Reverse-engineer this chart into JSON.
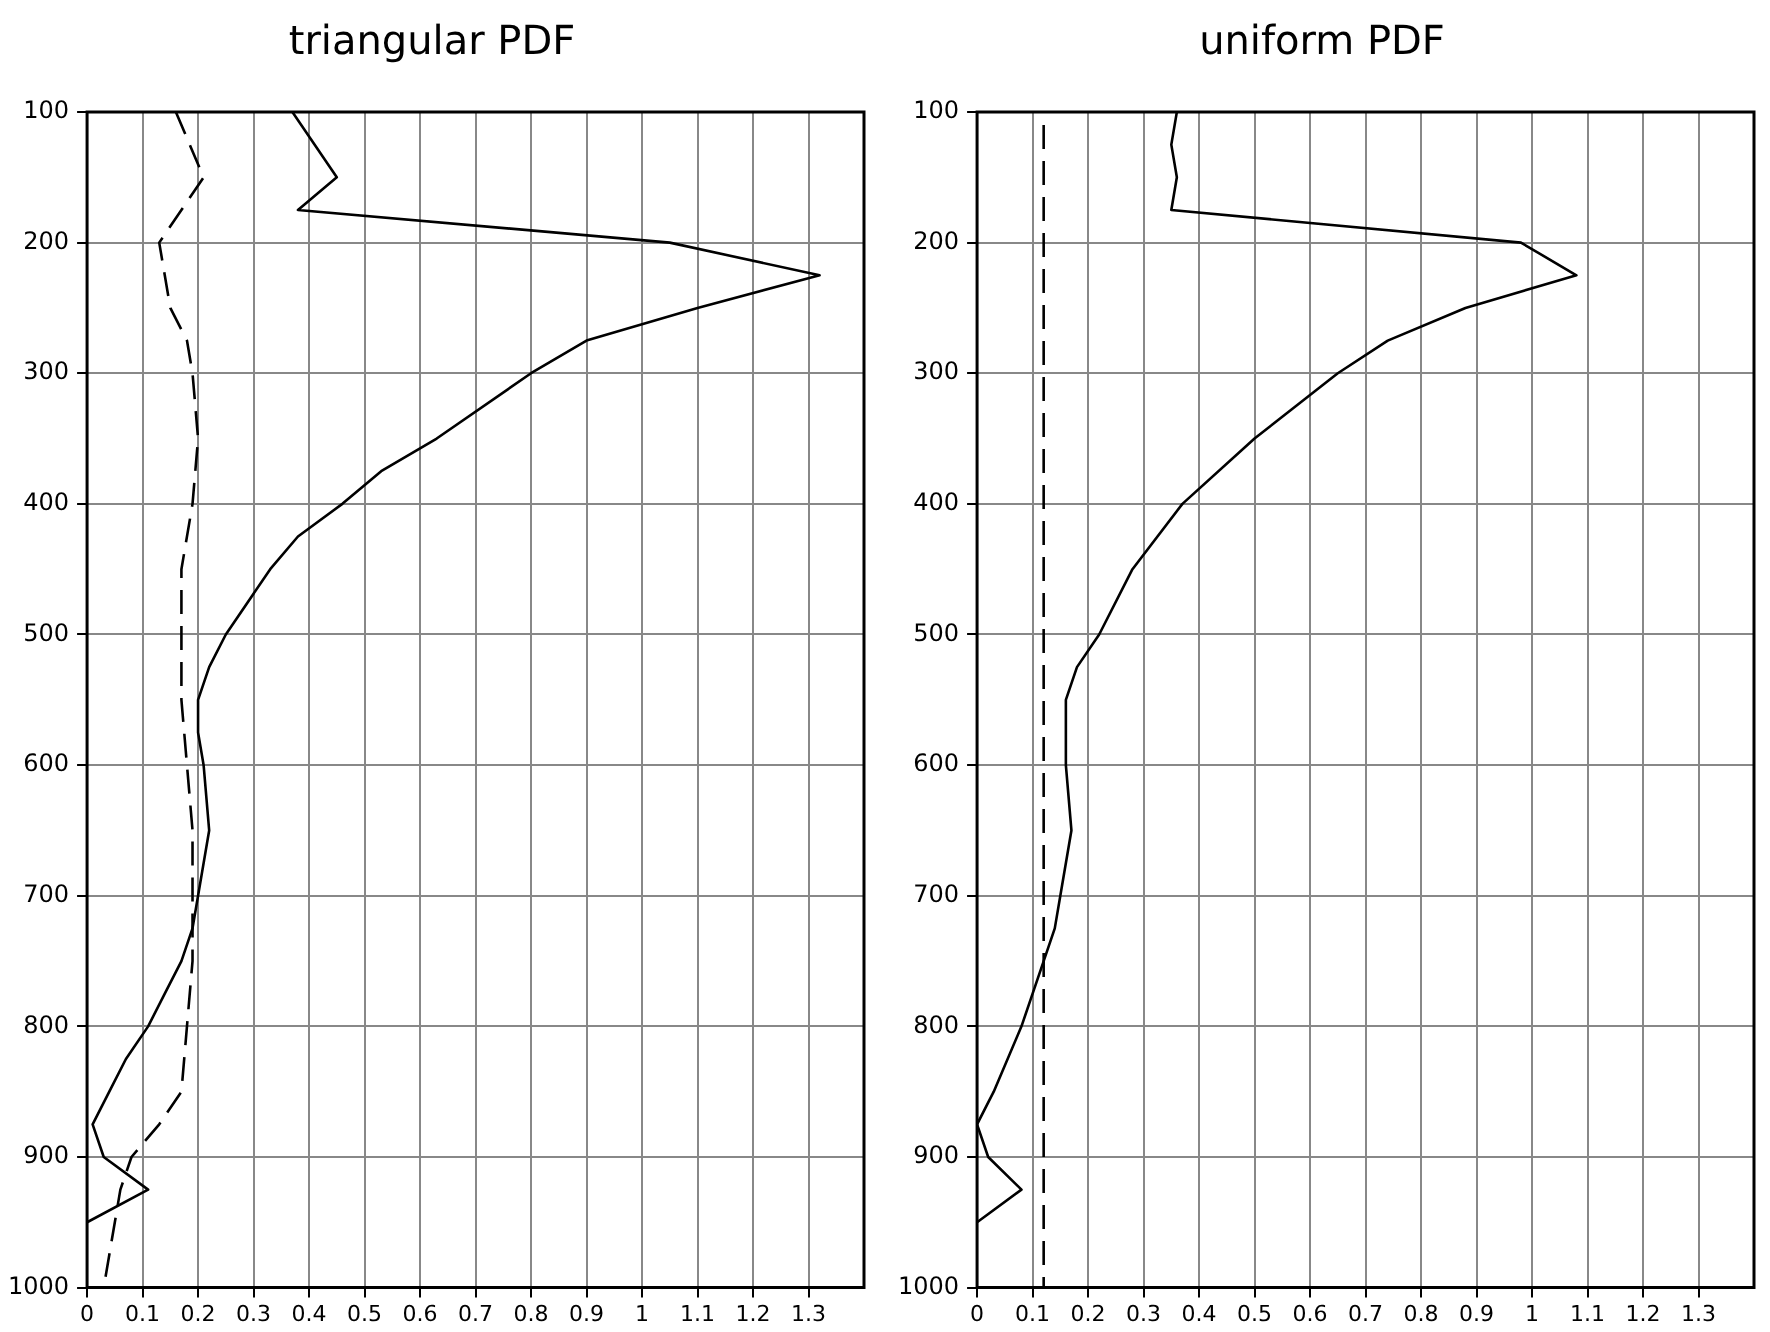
{
  "chart_data": [
    {
      "type": "line",
      "title": "triangular PDF",
      "xlim": [
        0,
        1.4
      ],
      "xticks": [
        0,
        0.1,
        0.2,
        0.3,
        0.4,
        0.5,
        0.6,
        0.7,
        0.8,
        0.9,
        1,
        1.1,
        1.2,
        1.3
      ],
      "ylim": [
        1000,
        100
      ],
      "yticks": [
        100,
        200,
        300,
        400,
        500,
        600,
        700,
        800,
        900,
        1000
      ],
      "grid": true,
      "legend": false,
      "marker": "none",
      "series": [
        {
          "color": "#000000",
          "line_style": "solid",
          "x": [
            0.37,
            0.45,
            0.38,
            1.05,
            1.32,
            1.1,
            0.9,
            0.8,
            0.63,
            0.53,
            0.46,
            0.38,
            0.33,
            0.25,
            0.22,
            0.2,
            0.2,
            0.21,
            0.22,
            0.2,
            0.19,
            0.17,
            0.14,
            0.11,
            0.07,
            0.04,
            0.01,
            0.03,
            0.11,
            0.0
          ],
          "values": [
            100,
            150,
            175,
            200,
            225,
            250,
            275,
            300,
            350,
            375,
            400,
            425,
            450,
            500,
            525,
            550,
            575,
            600,
            650,
            700,
            725,
            750,
            775,
            800,
            825,
            850,
            875,
            900,
            925,
            950
          ]
        },
        {
          "color": "#000000",
          "line_style": "dashed",
          "x": [
            0.16,
            0.21,
            0.17,
            0.13,
            0.14,
            0.15,
            0.18,
            0.19,
            0.2,
            0.19,
            0.17,
            0.17,
            0.17,
            0.18,
            0.19,
            0.19,
            0.19,
            0.18,
            0.17,
            0.13,
            0.08,
            0.06,
            0.05,
            0.03
          ],
          "values": [
            100,
            150,
            175,
            200,
            225,
            250,
            275,
            300,
            350,
            400,
            450,
            500,
            550,
            600,
            650,
            700,
            750,
            800,
            850,
            875,
            900,
            925,
            950,
            1000
          ]
        }
      ]
    },
    {
      "type": "line",
      "title": "uniform PDF",
      "xlim": [
        0,
        1.4
      ],
      "xticks": [
        0,
        0.1,
        0.2,
        0.3,
        0.4,
        0.5,
        0.6,
        0.7,
        0.8,
        0.9,
        1,
        1.1,
        1.2,
        1.3
      ],
      "ylim": [
        1000,
        100
      ],
      "yticks": [
        100,
        200,
        300,
        400,
        500,
        600,
        700,
        800,
        900,
        1000
      ],
      "grid": true,
      "legend": false,
      "marker": "none",
      "series": [
        {
          "color": "#000000",
          "line_style": "solid",
          "x": [
            0.36,
            0.35,
            0.36,
            0.35,
            0.98,
            1.08,
            0.88,
            0.74,
            0.65,
            0.5,
            0.37,
            0.28,
            0.22,
            0.18,
            0.16,
            0.16,
            0.17,
            0.15,
            0.14,
            0.12,
            0.08,
            0.03,
            0.0,
            0.02,
            0.08,
            0.0
          ],
          "values": [
            100,
            125,
            150,
            175,
            200,
            225,
            250,
            275,
            300,
            350,
            400,
            450,
            500,
            525,
            550,
            600,
            650,
            700,
            725,
            750,
            800,
            850,
            875,
            900,
            925,
            950
          ]
        },
        {
          "color": "#000000",
          "line_style": "dashed",
          "x": [
            0.12,
            0.12
          ],
          "values": [
            110,
            1000
          ]
        }
      ]
    }
  ]
}
